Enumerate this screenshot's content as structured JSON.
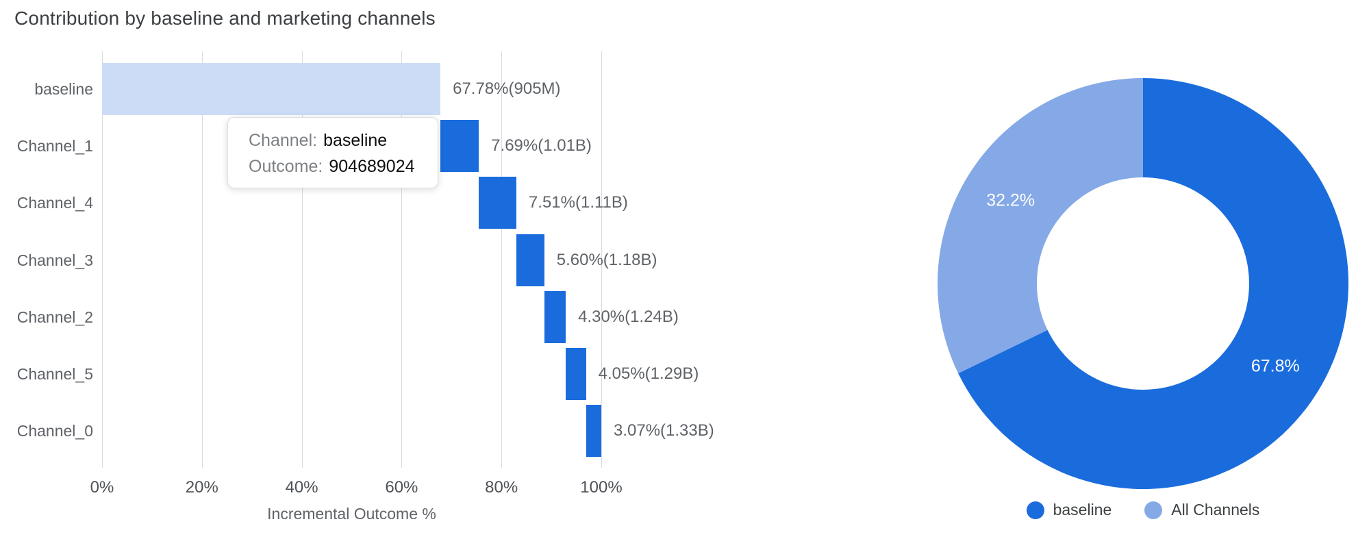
{
  "title": "Contribution by baseline and marketing channels",
  "chart_data": [
    {
      "type": "bar",
      "subtype": "horizontal-waterfall",
      "title": "Contribution by baseline and marketing channels",
      "xlabel": "Incremental Outcome %",
      "categories": [
        "baseline",
        "Channel_1",
        "Channel_4",
        "Channel_3",
        "Channel_2",
        "Channel_5",
        "Channel_0"
      ],
      "values_pct": [
        67.78,
        7.69,
        7.51,
        5.6,
        4.3,
        4.05,
        3.07
      ],
      "bar_start_pct": [
        0,
        67.78,
        75.47,
        82.98,
        88.58,
        92.88,
        96.93
      ],
      "bar_labels": [
        "67.78%(905M)",
        "7.69%(1.01B)",
        "7.51%(1.11B)",
        "5.60%(1.18B)",
        "4.30%(1.24B)",
        "4.05%(1.29B)",
        "3.07%(1.33B)"
      ],
      "cumulative_outcome": [
        "905M",
        "1.01B",
        "1.11B",
        "1.18B",
        "1.24B",
        "1.29B",
        "1.33B"
      ],
      "x_ticks": [
        "0%",
        "20%",
        "40%",
        "60%",
        "80%",
        "100%"
      ],
      "xlim": [
        0,
        100
      ],
      "grid": true,
      "colors": {
        "baseline_bar": "#CDDCF6",
        "channel_bar": "#1A6CDD"
      }
    },
    {
      "type": "pie",
      "donut": true,
      "start_angle_deg": 0,
      "direction": "clockwise",
      "legend_position": "bottom",
      "slices": [
        {
          "label": "baseline",
          "value": 67.8,
          "display": "67.8%",
          "color": "#1A6CDD"
        },
        {
          "label": "All Channels",
          "value": 32.2,
          "display": "32.2%",
          "color": "#85A9E7"
        }
      ]
    }
  ],
  "tooltip": {
    "rows": [
      {
        "label": "Channel:",
        "value": "baseline"
      },
      {
        "label": "Outcome:",
        "value": "904689024"
      }
    ]
  }
}
